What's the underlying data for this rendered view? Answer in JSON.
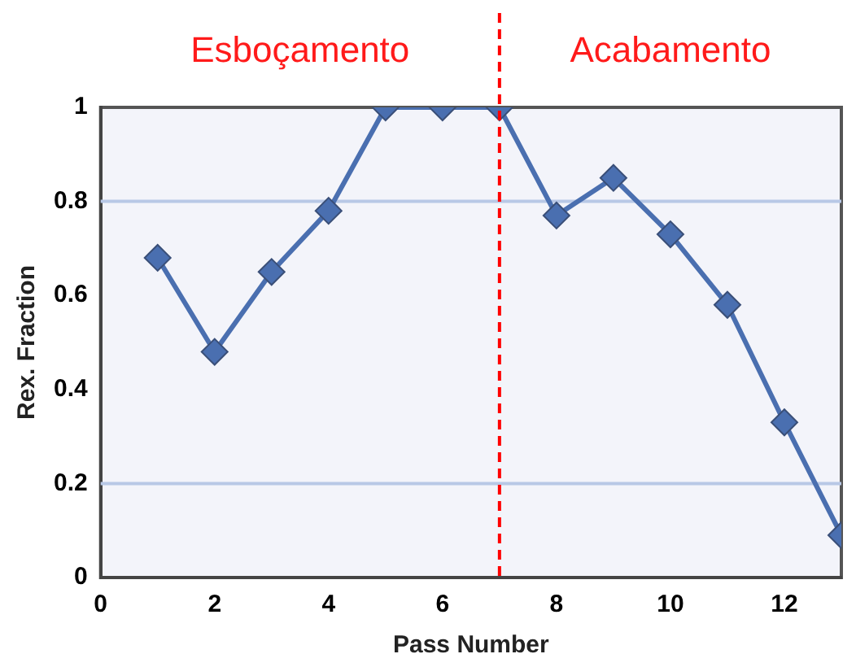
{
  "chart_data": {
    "type": "line",
    "xlabel": "Pass Number",
    "ylabel": "Rex. Fraction",
    "x": [
      1,
      2,
      3,
      4,
      5,
      6,
      7,
      8,
      9,
      10,
      11,
      12,
      13
    ],
    "series": [
      {
        "color": "#4a6fb0",
        "values": [
          0.68,
          0.48,
          0.65,
          0.78,
          1,
          1,
          1,
          0.77,
          0.85,
          0.73,
          0.58,
          0.33,
          0.09
        ]
      }
    ],
    "xlim": [
      0,
      13
    ],
    "xticks": [
      0,
      2,
      4,
      6,
      8,
      10,
      12
    ],
    "ylim": [
      0,
      1
    ],
    "yticks": [
      0,
      0.2,
      0.4,
      0.6,
      0.8,
      1
    ],
    "grid": false,
    "legend": false,
    "marker": "diamond",
    "line_style": "solid",
    "ref_lines": [
      {
        "axis": "x",
        "value": 7,
        "color": "#ff0000",
        "line_style": "dashed"
      },
      {
        "axis": "y",
        "value": 0.8,
        "color": "#b8c8e6",
        "line_style": "solid"
      },
      {
        "axis": "y",
        "value": 0.2,
        "color": "#b8c8e6",
        "line_style": "solid"
      }
    ],
    "annotations": [
      "Esboçamento",
      "Acabamento"
    ]
  }
}
